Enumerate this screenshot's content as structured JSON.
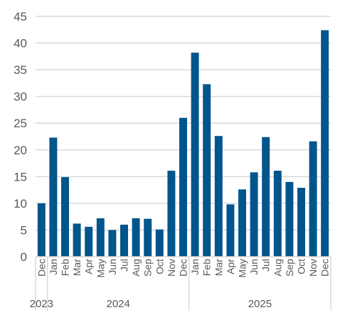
{
  "chart_data": {
    "type": "bar",
    "title": "",
    "xlabel": "",
    "ylabel": "",
    "ylim": [
      0,
      45
    ],
    "yticks": [
      0,
      5,
      10,
      15,
      20,
      25,
      30,
      35,
      40,
      45
    ],
    "grid": true,
    "legend": "none",
    "bar_color": "#00558c",
    "categories": [
      "Dec",
      "Jan",
      "Feb",
      "Mar",
      "Apr",
      "May",
      "Jun",
      "Jul",
      "Aug",
      "Sep",
      "Oct",
      "Nov",
      "Dec",
      "Jan",
      "Feb",
      "Mar",
      "Apr",
      "May",
      "Jun",
      "Jul",
      "Aug",
      "Sep",
      "Oct",
      "Nov",
      "Dec"
    ],
    "years": [
      {
        "label": "2023",
        "start": 0,
        "end": 0
      },
      {
        "label": "2024",
        "start": 1,
        "end": 12
      },
      {
        "label": "2025",
        "start": 13,
        "end": 24
      }
    ],
    "values": [
      10.0,
      22.3,
      14.9,
      6.2,
      5.6,
      7.2,
      5.0,
      6.0,
      7.2,
      7.1,
      5.1,
      16.1,
      26.0,
      38.2,
      32.3,
      22.6,
      9.8,
      12.6,
      15.8,
      22.4,
      16.1,
      14.0,
      12.9,
      21.6,
      42.4
    ]
  }
}
